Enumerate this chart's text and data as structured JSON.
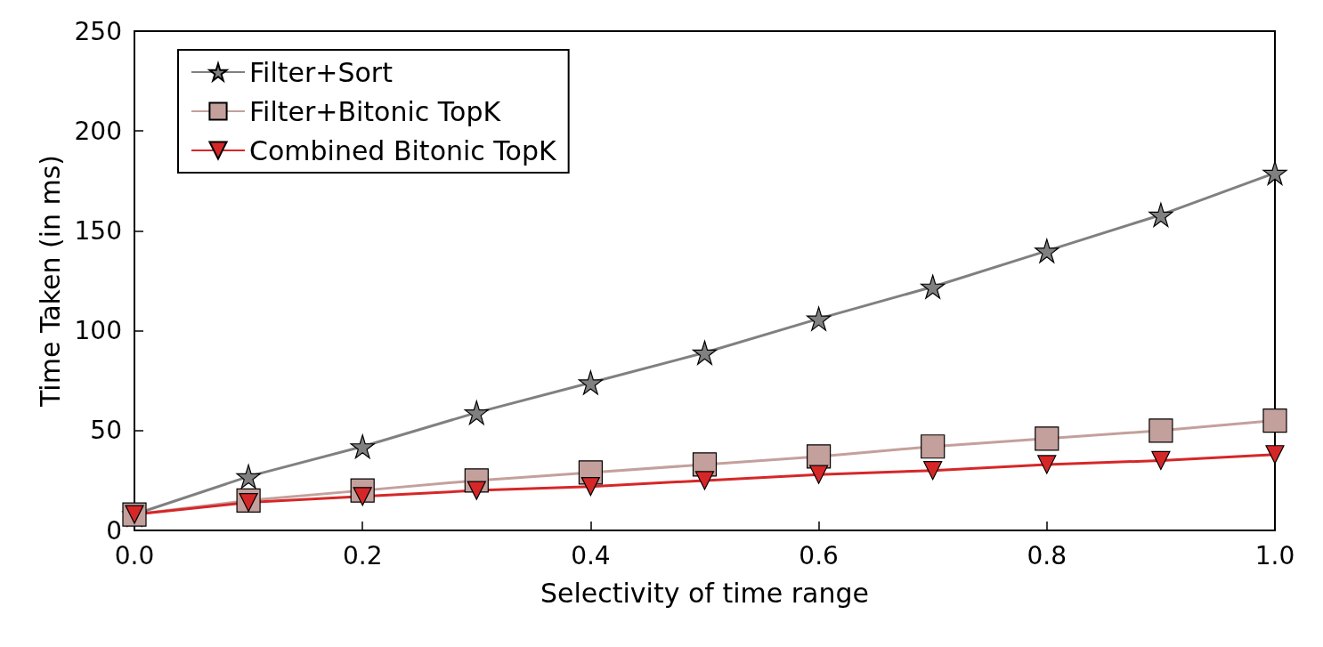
{
  "chart_data": {
    "type": "line",
    "xlabel": "Selectivity of time range",
    "ylabel": "Time Taken (in ms)",
    "x": [
      0,
      0.1,
      0.2,
      0.3,
      0.4,
      0.5,
      0.6,
      0.7,
      0.8,
      0.9,
      1.0
    ],
    "series": [
      {
        "name": "Filter+Sort",
        "color": "#808080",
        "marker": "star",
        "values": [
          8,
          27,
          42,
          59,
          74,
          89,
          106,
          122,
          140,
          158,
          179
        ]
      },
      {
        "name": "Filter+Bitonic TopK",
        "color": "#c4a09c",
        "marker": "square",
        "values": [
          8,
          15,
          20,
          25,
          29,
          33,
          37,
          42,
          46,
          50,
          55
        ]
      },
      {
        "name": "Combined Bitonic TopK",
        "color": "#d62728",
        "marker": "triangle",
        "values": [
          8,
          14,
          17,
          20,
          22,
          25,
          28,
          30,
          33,
          35,
          38
        ]
      }
    ],
    "xlim": [
      0,
      1
    ],
    "xticks": [
      {
        "value": 0,
        "label": "0.0"
      },
      {
        "value": 0.2,
        "label": "0.2"
      },
      {
        "value": 0.4,
        "label": "0.4"
      },
      {
        "value": 0.6,
        "label": "0.6"
      },
      {
        "value": 0.8,
        "label": "0.8"
      },
      {
        "value": 1,
        "label": "1.0"
      }
    ],
    "ylim": [
      0,
      250
    ],
    "yticks": [
      0,
      50,
      100,
      150,
      200,
      250
    ],
    "grid": false,
    "legend": "top left",
    "line_style": "solid"
  }
}
